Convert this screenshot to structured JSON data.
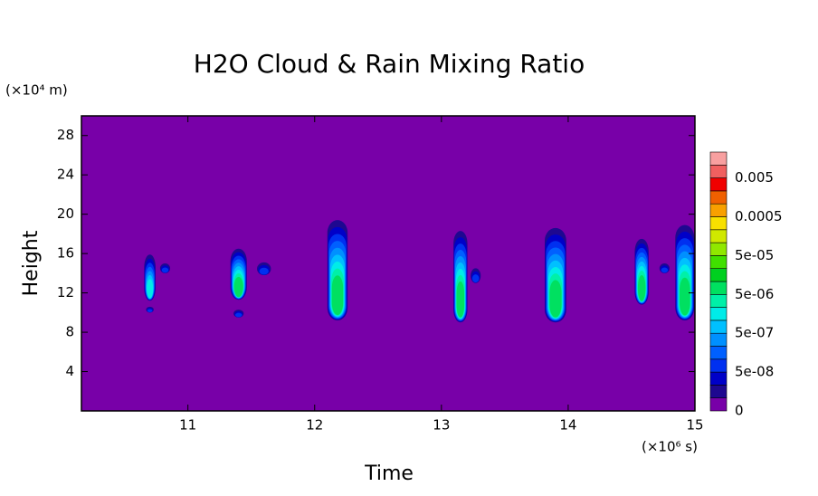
{
  "chart_data": {
    "type": "contour",
    "title": "H2O Cloud & Rain Mixing Ratio",
    "x_label": "Time",
    "y_label": "Height",
    "x_unit": "(×10⁶ s)",
    "y_unit": "(×10⁴ m)",
    "xlim": [
      10.16,
      15
    ],
    "ylim": [
      0,
      30
    ],
    "xticks": [
      11,
      12,
      13,
      14,
      15
    ],
    "yticks": [
      4,
      8,
      12,
      16,
      20,
      24,
      28
    ],
    "colorbar": {
      "colors": [
        "#7800a8",
        "#1e0890",
        "#0000c8",
        "#0030f0",
        "#0060ff",
        "#0090ff",
        "#00c0ff",
        "#00ece8",
        "#00f0a8",
        "#00e060",
        "#00d020",
        "#40e000",
        "#90e800",
        "#d0e800",
        "#f8e000",
        "#f8a000",
        "#f06000",
        "#f00000",
        "#f06060",
        "#f8a0a0"
      ],
      "ticks": [
        0,
        {
          "value": 5e-08,
          "label": "5e-08"
        },
        {
          "value": 5e-07,
          "label": "5e-07"
        },
        {
          "value": 5e-06,
          "label": "5e-06"
        },
        {
          "value": 5e-05,
          "label": "5e-05"
        },
        0.0005,
        0.005
      ]
    },
    "clouds": [
      {
        "x": 10.7,
        "bottom": 11.2,
        "top": 15.9,
        "width": 0.09,
        "peak": 2e-06
      },
      {
        "x": 10.82,
        "bottom": 14.0,
        "top": 15.0,
        "width": 0.08,
        "peak": 5e-08
      },
      {
        "x": 10.7,
        "bottom": 10.0,
        "top": 10.6,
        "width": 0.06,
        "peak": 1e-07
      },
      {
        "x": 11.4,
        "bottom": 11.3,
        "top": 16.5,
        "width": 0.13,
        "peak": 5e-06
      },
      {
        "x": 11.6,
        "bottom": 13.8,
        "top": 15.1,
        "width": 0.11,
        "peak": 1e-07
      },
      {
        "x": 11.4,
        "bottom": 9.5,
        "top": 10.3,
        "width": 0.08,
        "peak": 1e-07
      },
      {
        "x": 12.18,
        "bottom": 9.2,
        "top": 19.4,
        "width": 0.16,
        "peak": 1e-05
      },
      {
        "x": 13.15,
        "bottom": 9.0,
        "top": 18.3,
        "width": 0.11,
        "peak": 5e-06
      },
      {
        "x": 13.27,
        "bottom": 13.0,
        "top": 14.5,
        "width": 0.08,
        "peak": 5e-08
      },
      {
        "x": 13.9,
        "bottom": 9.0,
        "top": 18.6,
        "width": 0.17,
        "peak": 1e-05
      },
      {
        "x": 14.58,
        "bottom": 10.8,
        "top": 17.5,
        "width": 0.11,
        "peak": 5e-06
      },
      {
        "x": 14.76,
        "bottom": 14.0,
        "top": 15.0,
        "width": 0.08,
        "peak": 1e-07
      },
      {
        "x": 14.92,
        "bottom": 9.2,
        "top": 18.9,
        "width": 0.15,
        "peak": 1e-05
      }
    ]
  }
}
